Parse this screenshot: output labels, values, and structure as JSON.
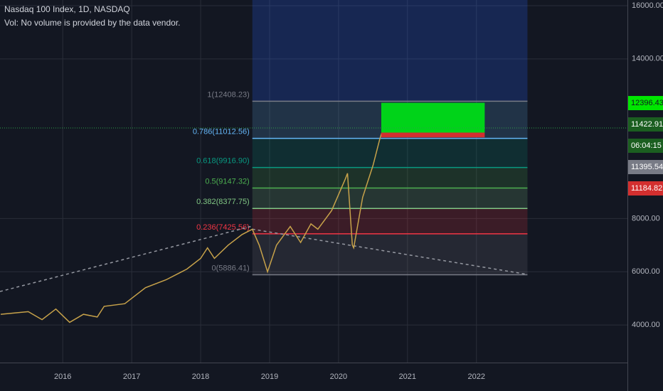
{
  "chart_data": {
    "type": "line",
    "title": "Nasdaq 100 Index, 1D, NASDAQ",
    "subtitle": "Vol: No volume is provided by the data vendor.",
    "color": "#c7a24a",
    "x": [
      2015.1,
      2015.3,
      2015.5,
      2015.7,
      2015.9,
      2016.1,
      2016.3,
      2016.5,
      2016.6,
      2016.9,
      2017.2,
      2017.5,
      2017.8,
      2018.0,
      2018.1,
      2018.2,
      2018.4,
      2018.6,
      2018.75,
      2018.85,
      2018.97,
      2019.1,
      2019.3,
      2019.45,
      2019.6,
      2019.7,
      2019.9,
      2020.1,
      2020.13,
      2020.2,
      2020.22,
      2020.35,
      2020.5,
      2020.6,
      2020.65
    ],
    "values": [
      4400,
      4450,
      4500,
      4200,
      4600,
      4100,
      4400,
      4300,
      4700,
      4800,
      5400,
      5700,
      6100,
      6500,
      6900,
      6500,
      7000,
      7400,
      7600,
      7000,
      6000,
      7000,
      7700,
      7100,
      7800,
      7600,
      8300,
      9500,
      9700,
      7000,
      6900,
      8800,
      10000,
      11000,
      11400
    ],
    "xlim": [
      2015.09,
      2024.19
    ],
    "ylim": [
      2587,
      16213
    ],
    "xticks": [
      2016,
      2017,
      2018,
      2019,
      2020,
      2021,
      2022
    ],
    "yticks": [
      {
        "value": 4000,
        "label": "4000.00"
      },
      {
        "value": 6000,
        "label": "6000.00"
      },
      {
        "value": 8000,
        "label": "8000.00"
      },
      {
        "value": 14000,
        "label": "14000.00"
      },
      {
        "value": 16000,
        "label": "16000.00"
      }
    ],
    "grid": true,
    "fib_x": [
      2018.75,
      2022.74
    ],
    "fib_levels": [
      {
        "value": 12408.23,
        "label": "1(12408.23)",
        "color": "#787b86"
      },
      {
        "value": 11012.56,
        "label": "0.786(11012.56)",
        "color": "#64b5f6"
      },
      {
        "value": 9916.9,
        "label": "0.618(9916.90)",
        "color": "#089981"
      },
      {
        "value": 9147.32,
        "label": "0.5(9147.32)",
        "color": "#4caf50"
      },
      {
        "value": 8377.75,
        "label": "0.382(8377.75)",
        "color": "#81c784"
      },
      {
        "value": 7425.56,
        "label": "0.236(7425.56)",
        "color": "#f23645"
      },
      {
        "value": 5886.41,
        "label": "0(5886.41)",
        "color": "#787b86"
      }
    ],
    "position": {
      "x": [
        2020.62,
        2022.12
      ],
      "target": 12350,
      "entry": 11230,
      "stop": 11050
    },
    "trend_lines": [
      {
        "x": [
          2015.09,
          2018.75
        ],
        "values": [
          5257,
          7717
        ]
      },
      {
        "x": [
          2018.75,
          2022.74
        ],
        "values": [
          7600,
          5900
        ]
      }
    ],
    "price_labels": [
      {
        "label": "12396.43",
        "color": "#00e600",
        "text_color": "#131722"
      },
      {
        "label": "11422.91",
        "color": "#1b5e20",
        "text_color": "#ffffff"
      },
      {
        "label": "06:04:15",
        "color": "#1b5e20",
        "text_color": "#ffffff"
      },
      {
        "label": "11395.54",
        "color": "#787b86",
        "text_color": "#ffffff"
      },
      {
        "label": "11184.82",
        "color": "#d32f2f",
        "text_color": "#ffffff"
      }
    ]
  }
}
